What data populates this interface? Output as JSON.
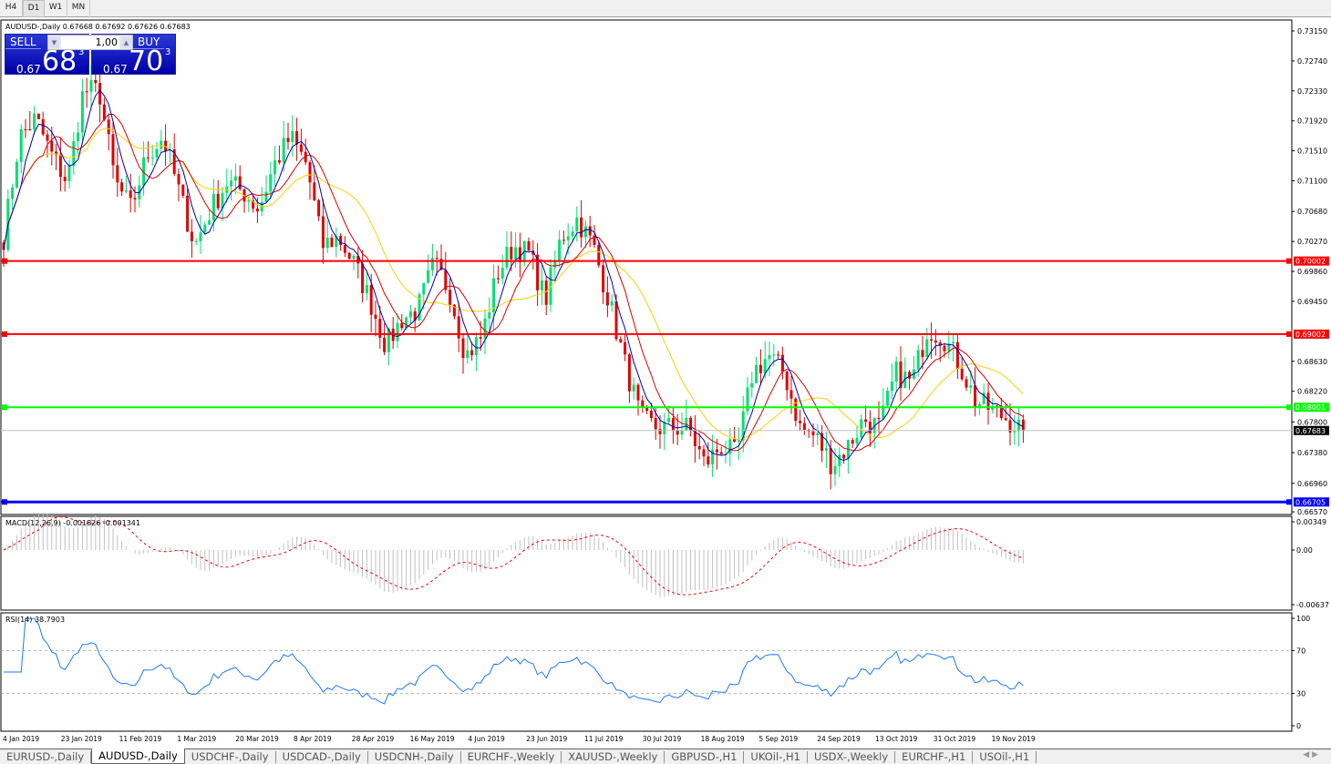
{
  "timeframes": [
    {
      "label": "H4"
    },
    {
      "label": "D1",
      "active": true
    },
    {
      "label": "W1"
    },
    {
      "label": "MN"
    }
  ],
  "chart_title": "AUDUSD-,Daily  0.67668 0.67692 0.67626 0.67683",
  "trade_panel": {
    "sell_label": "SELL",
    "buy_label": "BUY",
    "lot": "1,00",
    "sell_prefix": "0.67",
    "sell_big": "68",
    "sell_sup": "3",
    "buy_prefix": "0.67",
    "buy_big": "70",
    "buy_sup": "3"
  },
  "price_axis": [
    "0.73150",
    "0.72740",
    "0.72330",
    "0.71920",
    "0.71510",
    "0.71100",
    "0.70680",
    "0.70270",
    "0.69860",
    "0.69450",
    "0.68630",
    "0.68220",
    "0.67800",
    "0.67380",
    "0.66960",
    "0.66570"
  ],
  "levels": [
    {
      "price": "0.70002",
      "color": "#ff0000"
    },
    {
      "price": "0.69002",
      "color": "#ff0000"
    },
    {
      "price": "0.68001",
      "color": "#00ff00"
    },
    {
      "price": "0.66705",
      "color": "#0000ff"
    }
  ],
  "current_price": "0.67683",
  "macd": {
    "label": "MACD(12,26,9) -0.001826 -0.001341",
    "axis": [
      "0.00349",
      "0.00",
      "-0.00637"
    ]
  },
  "rsi": {
    "label": "RSI(14) 38.7903",
    "axis": [
      "100",
      "70",
      "30",
      "0"
    ]
  },
  "date_axis": [
    "4 Jan 2019",
    "23 Jan 2019",
    "11 Feb 2019",
    "1 Mar 2019",
    "20 Mar 2019",
    "8 Apr 2019",
    "28 Apr 2019",
    "16 May 2019",
    "4 Jun 2019",
    "23 Jun 2019",
    "11 Jul 2019",
    "30 Jul 2019",
    "18 Aug 2019",
    "5 Sep 2019",
    "24 Sep 2019",
    "13 Oct 2019",
    "31 Oct 2019",
    "19 Nov 2019"
  ],
  "tabs": [
    {
      "label": "EURUSD-,Daily"
    },
    {
      "label": "AUDUSD-,Daily",
      "active": true
    },
    {
      "label": "USDCHF-,Daily"
    },
    {
      "label": "USDCAD-,Daily"
    },
    {
      "label": "USDCNH-,Daily"
    },
    {
      "label": "EURCHF-,Weekly"
    },
    {
      "label": "XAUUSD-,Weekly"
    },
    {
      "label": "GBPUSD-,H1"
    },
    {
      "label": "UKOil-,H1"
    },
    {
      "label": "USDX-,Weekly"
    },
    {
      "label": "EURCHF-,H1"
    },
    {
      "label": "USOil-,H1"
    }
  ],
  "colors": {
    "bull": "#00e070",
    "bear": "#e00000",
    "ma_fast": "#0000c0",
    "ma_mid": "#e00000",
    "ma_slow": "#ffd000",
    "rsi": "#1e78ff"
  },
  "chart_data": {
    "type": "candlestick",
    "symbol": "AUDUSD",
    "timeframe": "Daily",
    "ylim": [
      0.6657,
      0.7315
    ],
    "close_path": [
      0.7033,
      0.717,
      0.7195,
      0.7146,
      0.7108,
      0.7233,
      0.7233,
      0.7108,
      0.7071,
      0.7146,
      0.717,
      0.7096,
      0.7021,
      0.7071,
      0.7108,
      0.7096,
      0.7071,
      0.7133,
      0.717,
      0.7133,
      0.7021,
      0.7033,
      0.6996,
      0.6946,
      0.6884,
      0.6921,
      0.6934,
      0.6996,
      0.6959,
      0.6871,
      0.6896,
      0.6984,
      0.7021,
      0.7009,
      0.6946,
      0.7033,
      0.7058,
      0.7021,
      0.6946,
      0.6859,
      0.6784,
      0.6772,
      0.6772,
      0.6772,
      0.6722,
      0.6747,
      0.6734,
      0.6847,
      0.6871,
      0.6847,
      0.6772,
      0.6759,
      0.6722,
      0.6747,
      0.6784,
      0.6772,
      0.6847,
      0.6834,
      0.6909,
      0.6896,
      0.6859,
      0.6809,
      0.6797,
      0.6784,
      0.6768
    ]
  }
}
